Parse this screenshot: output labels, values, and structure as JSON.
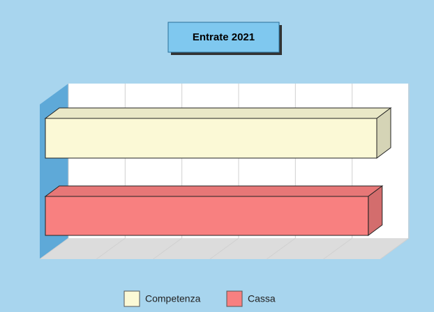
{
  "chart_data": {
    "type": "bar3d",
    "orientation": "horizontal",
    "title": "Entrate 2021",
    "series": [
      {
        "name": "Competenza",
        "color": "#fbf9d6",
        "values": [
          5.84
        ]
      },
      {
        "name": "Cassa",
        "color": "#f88080",
        "values": [
          5.69
        ]
      }
    ],
    "xlim": [
      0,
      6
    ],
    "xticks": [
      0,
      1,
      2,
      3,
      4,
      5,
      6
    ],
    "grid": true,
    "legend": "bottom"
  }
}
